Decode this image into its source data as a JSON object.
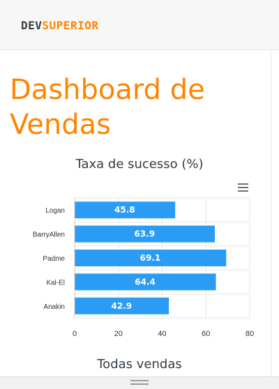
{
  "brand": {
    "part1": "DEV",
    "part2": "SUPERIOR"
  },
  "page": {
    "title_line1": "Dashboard de",
    "title_line2": "Vendas"
  },
  "chart": {
    "title": "Taxa de sucesso (%)",
    "menu_icon": "hamburger-menu-icon"
  },
  "chart_data": {
    "type": "bar",
    "orientation": "horizontal",
    "title": "Taxa de sucesso (%)",
    "categories": [
      "Logan",
      "BarryAllen",
      "Padme",
      "Kal-El",
      "Anakin"
    ],
    "values": [
      45.8,
      63.9,
      69.1,
      64.4,
      42.9
    ],
    "xlim": [
      0,
      80
    ],
    "xticks": [
      0,
      20,
      40,
      60,
      80
    ],
    "bar_color": "#2b9cf5",
    "grid": true
  },
  "section": {
    "title": "Todas vendas"
  },
  "colors": {
    "accent": "#ff8400",
    "bar": "#2b9cf5"
  }
}
